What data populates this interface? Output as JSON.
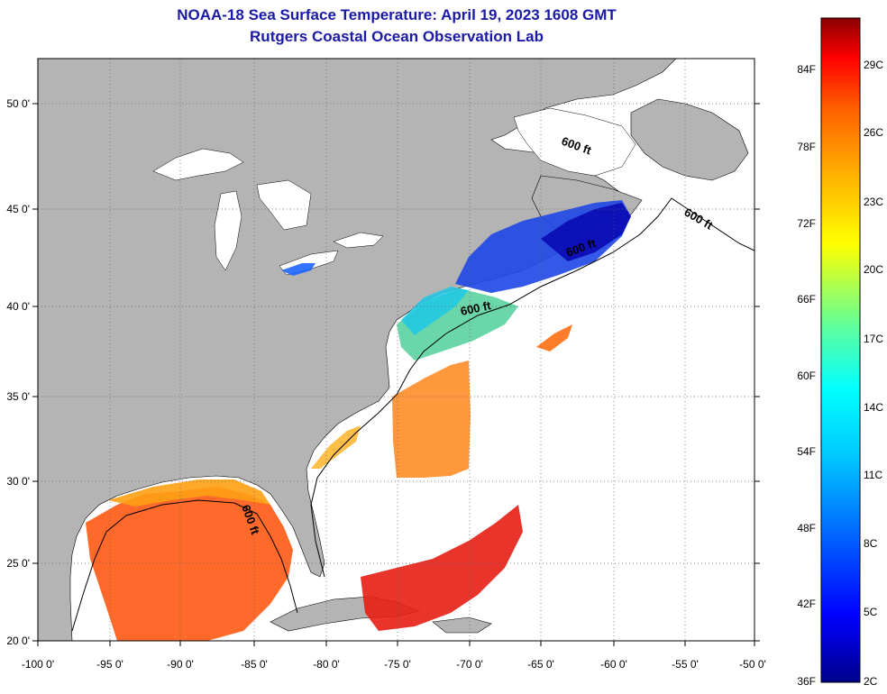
{
  "title_line1": "NOAA-18 Sea Surface Temperature:  April 19, 2023 1608 GMT",
  "title_line2": "Rutgers Coastal Ocean Observation Lab",
  "map": {
    "lon_range": [
      -100,
      -50
    ],
    "lat_range": [
      20,
      52
    ],
    "lon_ticks": [
      "-100 0'",
      "-95 0'",
      "-90 0'",
      "-85 0'",
      "-80 0'",
      "-75 0'",
      "-70 0'",
      "-65 0'",
      "-60 0'",
      "-55 0'",
      "-50 0'"
    ],
    "lat_ticks": [
      "20 0'",
      "25 0'",
      "30 0'",
      "35 0'",
      "40 0'",
      "45 0'",
      "50 0'"
    ],
    "contour_labels": [
      "600 ft",
      "600 ft",
      "600 ft",
      "600 ft",
      "600 ft"
    ],
    "colors": {
      "land": "#b4b4b4",
      "no_data": "#ffffff"
    }
  },
  "colorbar": {
    "fahrenheit_labels": [
      "84F",
      "78F",
      "72F",
      "66F",
      "60F",
      "54F",
      "48F",
      "42F",
      "36F"
    ],
    "celsius_labels": [
      "29C",
      "26C",
      "23C",
      "20C",
      "17C",
      "14C",
      "11C",
      "8C",
      "5C",
      "2C"
    ],
    "gradient_colors": [
      "#00008b",
      "#0000ff",
      "#0064ff",
      "#00c8ff",
      "#00ffff",
      "#64ff96",
      "#ffff00",
      "#ffb400",
      "#ff6400",
      "#ff0000",
      "#8b0000"
    ]
  }
}
